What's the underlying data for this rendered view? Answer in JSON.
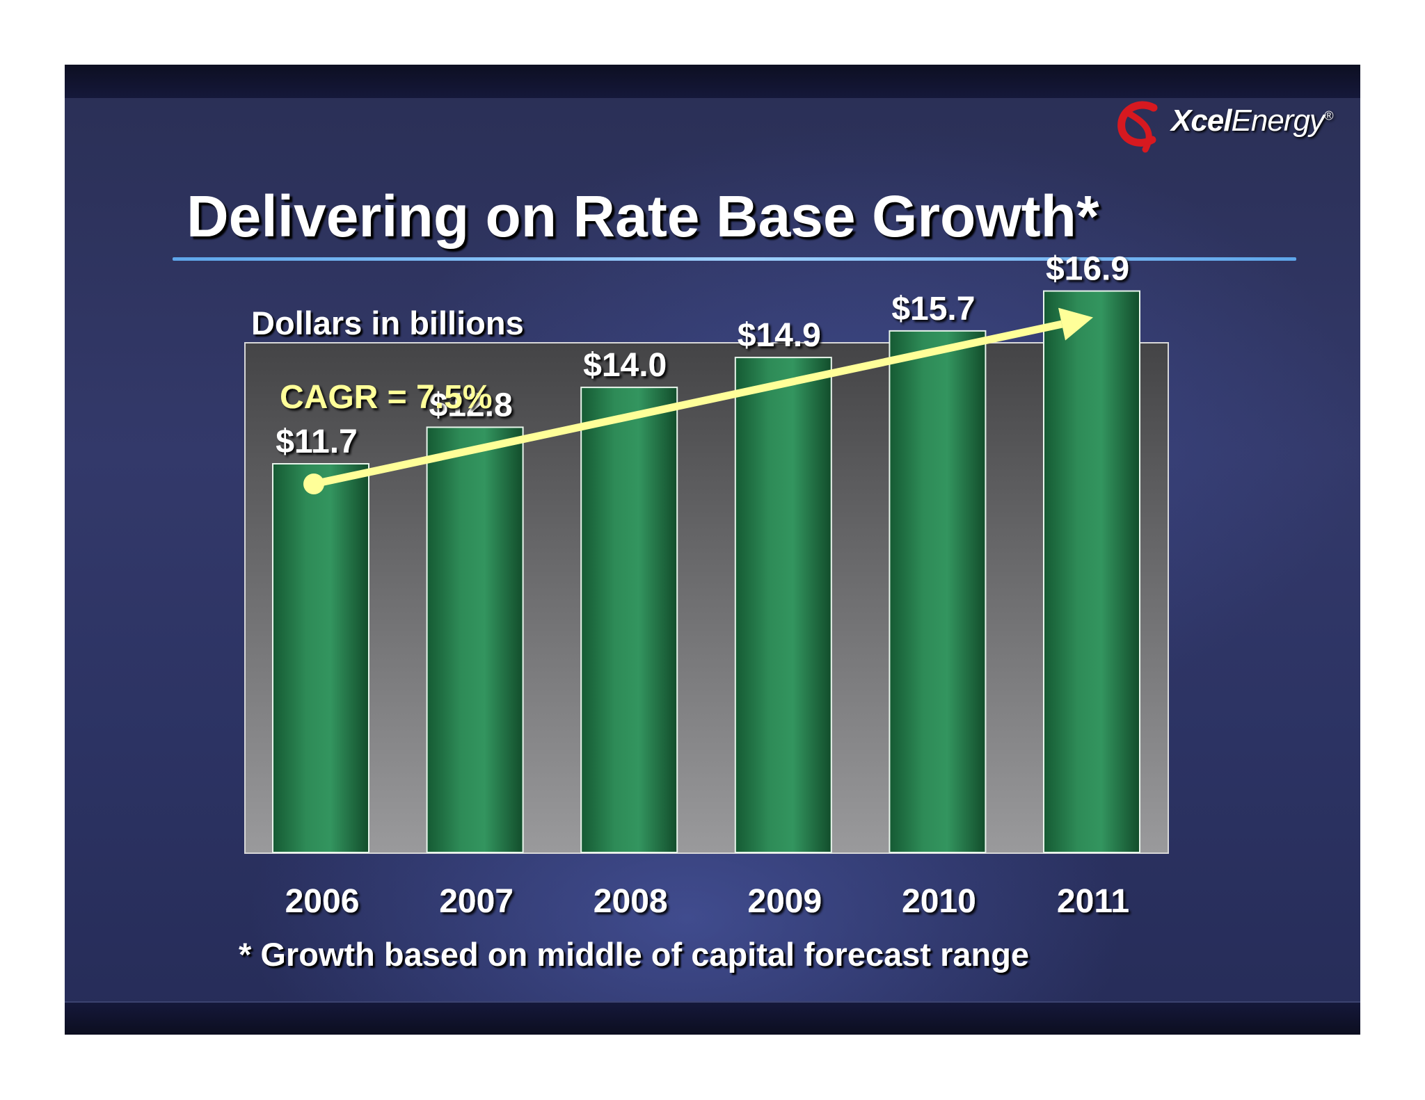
{
  "brand": {
    "name_bold": "Xcel",
    "name_rest": "Energy",
    "mark": "®"
  },
  "slide": {
    "title": "Delivering on Rate Base Growth*",
    "units_label": "Dollars in billions",
    "footnote": "* Growth based on middle of capital forecast range"
  },
  "colors": {
    "bar": "#2e8b57",
    "arrow": "#ffff99",
    "cagr_text": "#ffff99",
    "title_rule": "#8cc4ff"
  },
  "chart_data": {
    "type": "bar",
    "title": "Delivering on Rate Base Growth*",
    "ylabel": "Dollars in billions",
    "xlabel": "",
    "categories": [
      "2006",
      "2007",
      "2008",
      "2009",
      "2010",
      "2011"
    ],
    "values": [
      11.7,
      12.8,
      14.0,
      14.9,
      15.7,
      16.9
    ],
    "value_labels": [
      "$11.7",
      "$12.8",
      "$14.0",
      "$14.9",
      "$15.7",
      "$16.9"
    ],
    "ylim": [
      0,
      20
    ],
    "grid": false,
    "legend": "none",
    "annotations": [
      {
        "text": "CAGR = 7.5%",
        "kind": "trend-arrow",
        "from": "2006",
        "to": "2011"
      }
    ]
  }
}
